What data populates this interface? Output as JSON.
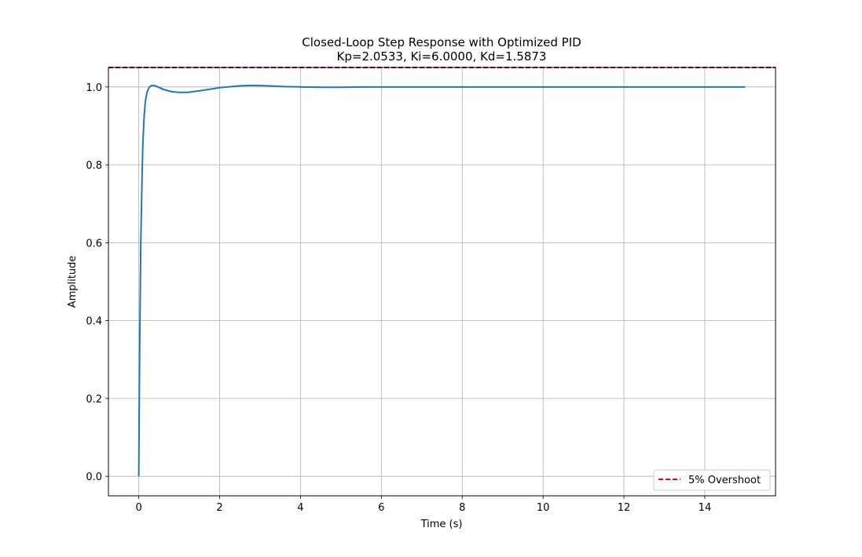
{
  "chart_data": {
    "type": "line",
    "title": "Closed-Loop Step Response with Optimized PID",
    "subtitle": "Kp=2.0533, Ki=6.0000, Kd=1.5873",
    "xlabel": "Time (s)",
    "ylabel": "Amplitude",
    "xlim": [
      -0.75,
      15.75
    ],
    "ylim": [
      -0.05,
      1.05
    ],
    "xticks": [
      0,
      2,
      4,
      6,
      8,
      10,
      12,
      14
    ],
    "xtick_labels": [
      "0",
      "2",
      "4",
      "6",
      "8",
      "10",
      "12",
      "14"
    ],
    "yticks": [
      0.0,
      0.2,
      0.4,
      0.6,
      0.8,
      1.0
    ],
    "ytick_labels": [
      "0.0",
      "0.2",
      "0.4",
      "0.6",
      "0.8",
      "1.0"
    ],
    "grid": true,
    "legend_position": "lower-right",
    "series": [
      {
        "color": "#1f77b4",
        "x": [
          0,
          0.02,
          0.05,
          0.08,
          0.1,
          0.13,
          0.16,
          0.2,
          0.25,
          0.3,
          0.35,
          0.4,
          0.5,
          0.6,
          0.8,
          1.0,
          1.2,
          1.5,
          2.0,
          2.5,
          2.8,
          3.2,
          3.6,
          4.0,
          4.5,
          5.0,
          5.5,
          6.0,
          7.0,
          8.0,
          10.0,
          12.0,
          14.0,
          15.0
        ],
        "y": [
          0.0,
          0.3,
          0.6,
          0.76,
          0.85,
          0.92,
          0.96,
          0.985,
          0.998,
          1.003,
          1.004,
          1.003,
          0.999,
          0.994,
          0.988,
          0.986,
          0.986,
          0.99,
          0.998,
          1.003,
          1.004,
          1.003,
          1.001,
          1.0,
          0.999,
          0.999,
          1.0,
          1.0,
          1.0,
          1.0,
          1.0,
          1.0,
          1.0,
          1.0
        ]
      },
      {
        "name": "5% Overshoot",
        "color": "#ff0000",
        "style": "dashed",
        "y_constant": 1.05
      }
    ]
  }
}
